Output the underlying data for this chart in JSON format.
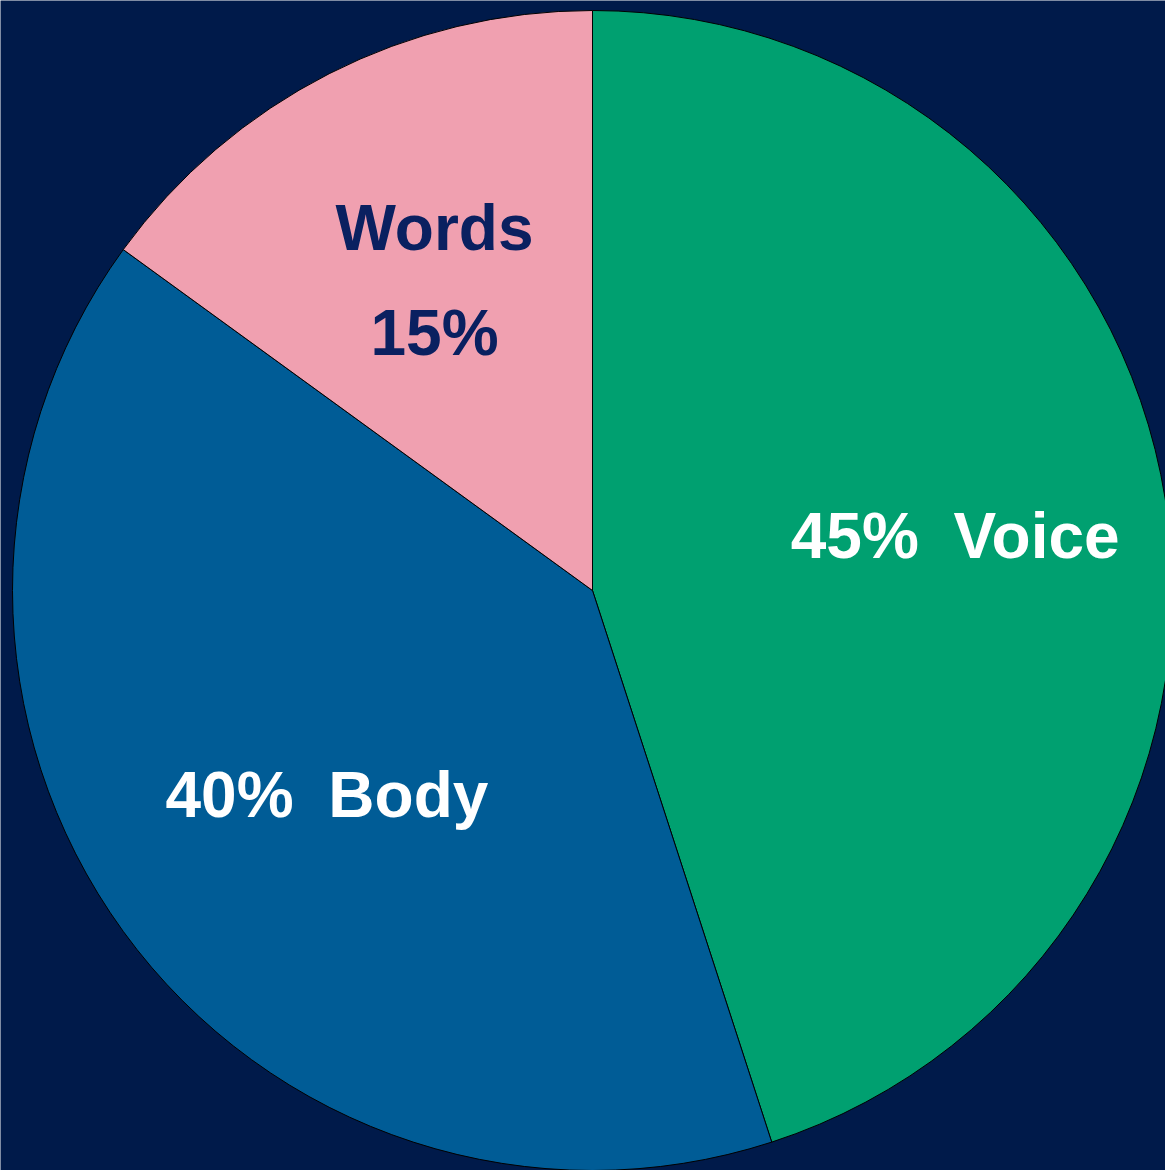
{
  "chart_data": {
    "type": "pie",
    "categories": [
      "Voice",
      "Body",
      "Words"
    ],
    "values": [
      45,
      40,
      15
    ],
    "colors": [
      "#00a070",
      "#005c96",
      "#f0a0b0"
    ],
    "value_labels": [
      "45%",
      "40%",
      "15%"
    ]
  }
}
